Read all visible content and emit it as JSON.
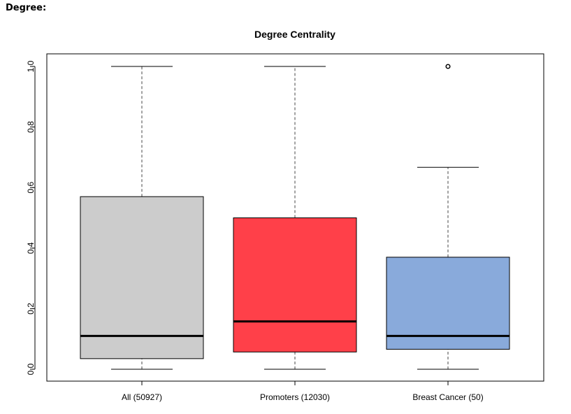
{
  "header": {
    "section_label": "Degree:"
  },
  "chart_data": {
    "type": "boxplot",
    "title": "Degree Centrality",
    "xlabel": "",
    "ylabel": "",
    "ylim": [
      -0.04,
      1.04
    ],
    "yticks": [
      "0.0",
      "0.2",
      "0.4",
      "0.6",
      "0.8",
      "1.0"
    ],
    "grid": false,
    "categories": [
      "All (50927)",
      "Promoters (12030)",
      "Breast Cancer (50)"
    ],
    "boxes": [
      {
        "name": "All (50927)",
        "min": 0.0,
        "q1": 0.035,
        "median": 0.11,
        "q3": 0.57,
        "max": 1.0,
        "outliers": [],
        "color": "#cccccc"
      },
      {
        "name": "Promoters (12030)",
        "min": 0.0,
        "q1": 0.057,
        "median": 0.158,
        "q3": 0.5,
        "max": 1.0,
        "outliers": [],
        "color": "#ff4049"
      },
      {
        "name": "Breast Cancer (50)",
        "min": 0.0,
        "q1": 0.066,
        "median": 0.11,
        "q3": 0.37,
        "max": 0.667,
        "outliers": [
          1.0
        ],
        "color": "#89aadb"
      }
    ]
  }
}
